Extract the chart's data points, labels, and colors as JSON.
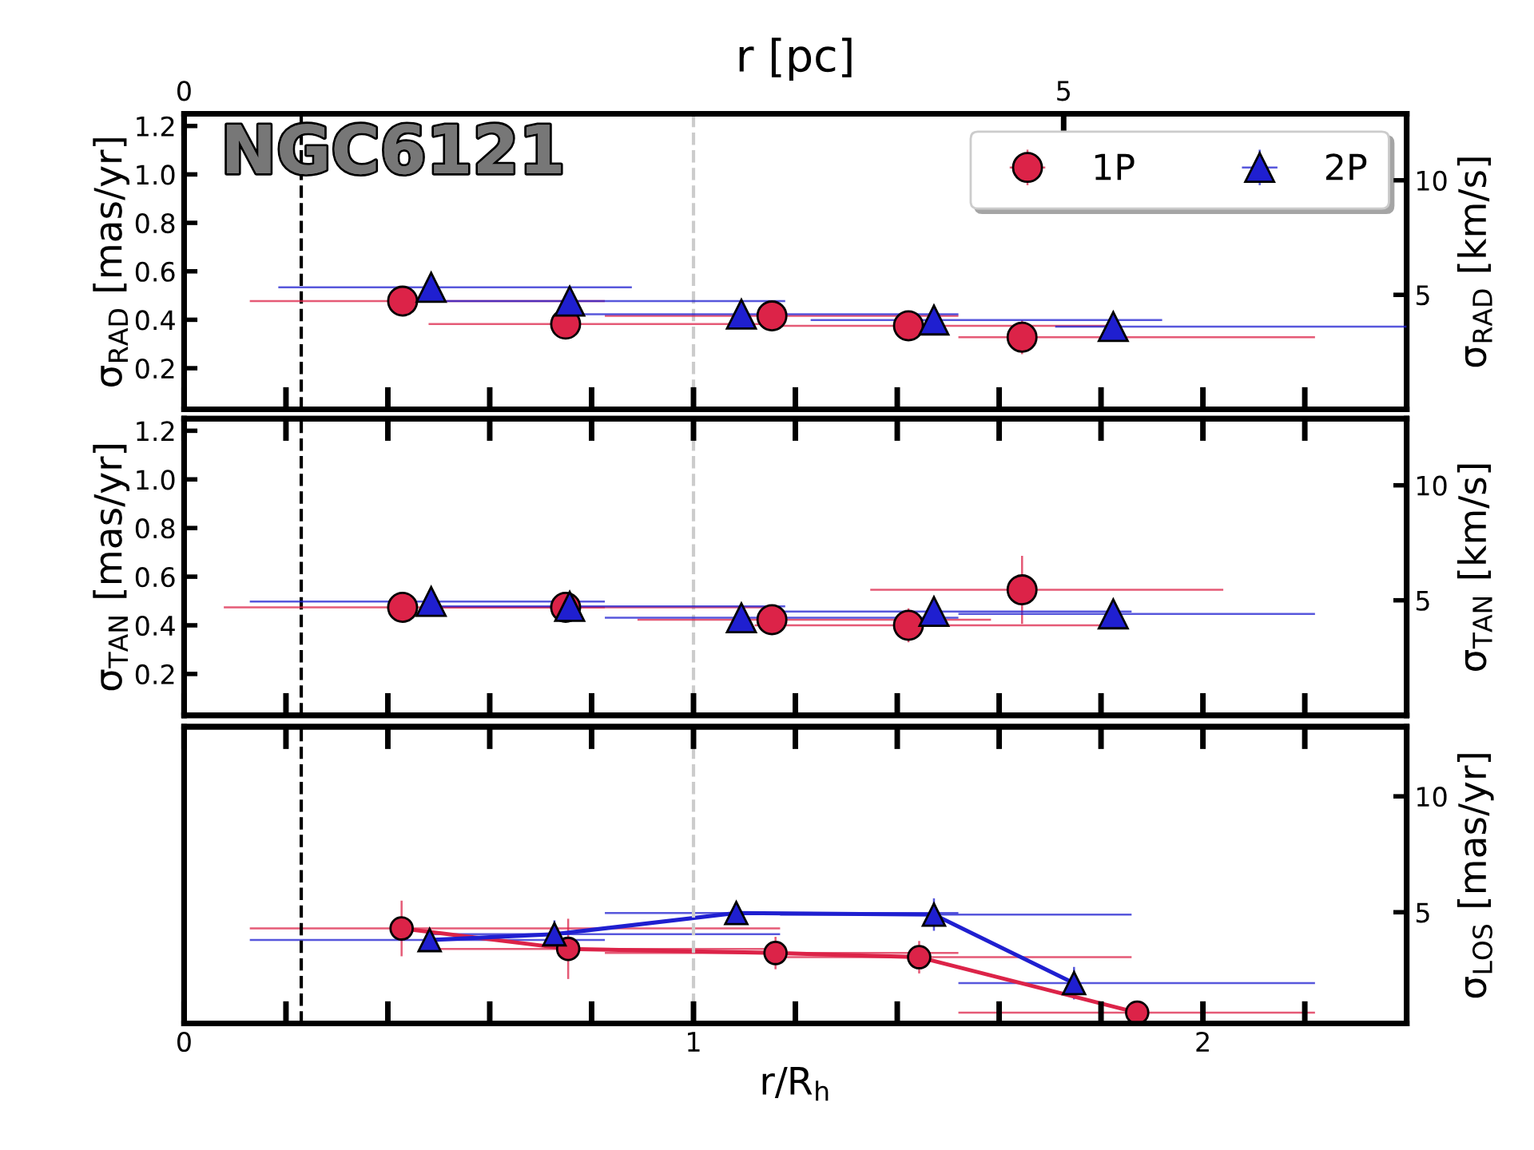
{
  "chart_data": [
    {
      "type": "scatter",
      "ylabel": "σ$_{RAD}$ [mas/yr]",
      "y2label": "σ$_{RAD}$ [km/s]",
      "x2label": "r [pc]",
      "annotations": [
        "NGC6121"
      ],
      "xlim": [
        0,
        2.4
      ],
      "ylim": [
        0.03,
        1.25
      ],
      "y2lim": [
        0,
        12.9
      ],
      "xticks": [
        0,
        {
          "value": 0.2,
          "label": null
        },
        {
          "value": 0.4,
          "label": null
        },
        {
          "value": 0.6,
          "label": null
        },
        {
          "value": 0.8,
          "label": null
        },
        1,
        {
          "value": 1.2,
          "label": null
        },
        {
          "value": 1.4,
          "label": null
        },
        {
          "value": 1.6,
          "label": null
        },
        {
          "value": 1.8,
          "label": null
        },
        2,
        {
          "value": 2.2,
          "label": null
        }
      ],
      "yticks": [
        0.2,
        0.4,
        0.6,
        0.8,
        {
          "value": 1,
          "label": "1.0"
        },
        1.2
      ],
      "y2ticks": [
        5,
        10
      ],
      "x2lim": [
        0,
        6.95
      ],
      "x2ticks": [
        0,
        5
      ],
      "tick_labels": "y",
      "legend": "top right",
      "ref_lines": [
        {
          "axis": "x",
          "value": 0.23,
          "color": "#000000",
          "line_style": "dashed"
        },
        {
          "axis": "x",
          "value": 1.0,
          "color": "#cccccc",
          "line_style": "dashed"
        }
      ],
      "series": [
        {
          "name": "1P",
          "color": "#dc2348",
          "marker": "circle",
          "x": [
            0.429,
            0.749,
            1.154,
            1.422,
            1.645
          ],
          "values": [
            0.477,
            0.382,
            0.416,
            0.375,
            0.328
          ],
          "errors": [
            0.04,
            0.04,
            0.04,
            0.05,
            0.07
          ],
          "xerrors": [
            [
              0.129,
              0.826
            ],
            [
              0.48,
              1.17
            ],
            [
              0.826,
              1.52
            ],
            [
              1.17,
              1.84
            ],
            [
              1.52,
              2.22
            ]
          ]
        },
        {
          "name": "2P",
          "color": "#1f1fd0",
          "marker": "triangle",
          "x": [
            0.485,
            0.757,
            1.094,
            1.472,
            1.824
          ],
          "values": [
            0.534,
            0.477,
            0.423,
            0.399,
            0.372
          ],
          "errors": [
            0.04,
            0.04,
            0.03,
            0.04,
            0.03
          ],
          "xerrors": [
            [
              0.185,
              0.879
            ],
            [
              0.48,
              1.18
            ],
            [
              0.77,
              1.52
            ],
            [
              1.23,
              1.92
            ],
            [
              1.71,
              2.4
            ]
          ]
        }
      ]
    },
    {
      "type": "scatter",
      "ylabel": "σ$_{TAN}$ [mas/yr]",
      "y2label": "σ$_{TAN}$ [km/s]",
      "xlim": [
        0,
        2.4
      ],
      "ylim": [
        0.03,
        1.25
      ],
      "y2lim": [
        0,
        12.9
      ],
      "xticks": [
        0,
        {
          "value": 0.2,
          "label": null
        },
        {
          "value": 0.4,
          "label": null
        },
        {
          "value": 0.6,
          "label": null
        },
        {
          "value": 0.8,
          "label": null
        },
        1,
        {
          "value": 1.2,
          "label": null
        },
        {
          "value": 1.4,
          "label": null
        },
        {
          "value": 1.6,
          "label": null
        },
        {
          "value": 1.8,
          "label": null
        },
        2,
        {
          "value": 2.2,
          "label": null
        }
      ],
      "yticks": [
        0.2,
        0.4,
        0.6,
        0.8,
        {
          "value": 1,
          "label": "1.0"
        },
        1.2
      ],
      "y2ticks": [
        5,
        10
      ],
      "tick_labels": "y",
      "ref_lines": [
        {
          "axis": "x",
          "value": 0.23,
          "color": "#000000",
          "line_style": "dashed"
        },
        {
          "axis": "x",
          "value": 1.0,
          "color": "#cccccc",
          "line_style": "dashed"
        }
      ],
      "series": [
        {
          "color": "#dc2348",
          "marker": "circle",
          "x": [
            0.429,
            0.749,
            1.154,
            1.422,
            1.645
          ],
          "values": [
            0.474,
            0.474,
            0.423,
            0.4,
            0.546
          ],
          "errors": [
            0.03,
            0.04,
            0.05,
            0.07,
            0.14
          ],
          "xerrors": [
            [
              0.078,
              0.826
            ],
            [
              0.48,
              1.17
            ],
            [
              0.89,
              1.584
            ],
            [
              1.12,
              1.82
            ],
            [
              1.347,
              2.04
            ]
          ]
        },
        {
          "color": "#1f1fd0",
          "marker": "triangle",
          "x": [
            0.485,
            0.757,
            1.094,
            1.472,
            1.824
          ],
          "values": [
            0.498,
            0.478,
            0.431,
            0.457,
            0.447
          ],
          "errors": [
            0.03,
            0.03,
            0.03,
            0.05,
            0.05
          ],
          "xerrors": [
            [
              0.129,
              0.826
            ],
            [
              0.47,
              1.18
            ],
            [
              0.826,
              1.52
            ],
            [
              1.17,
              1.86
            ],
            [
              1.52,
              2.22
            ]
          ]
        }
      ]
    },
    {
      "type": "line",
      "xlabel": "r/R$_{h}$",
      "y2label": "σ$_{LOS}$ [mas/yr]",
      "xlim": [
        0,
        2.4
      ],
      "y2lim": [
        0.2,
        13.0
      ],
      "xticks": [
        0,
        {
          "value": 0.2,
          "label": null
        },
        {
          "value": 0.4,
          "label": null
        },
        {
          "value": 0.6,
          "label": null
        },
        {
          "value": 0.8,
          "label": null
        },
        1,
        {
          "value": 1.2,
          "label": null
        },
        {
          "value": 1.4,
          "label": null
        },
        {
          "value": 1.6,
          "label": null
        },
        {
          "value": 1.8,
          "label": null
        },
        2,
        {
          "value": 2.2,
          "label": null
        }
      ],
      "y2ticks": [
        5,
        10
      ],
      "ref_lines": [
        {
          "axis": "x",
          "value": 0.23,
          "color": "#000000",
          "line_style": "dashed"
        },
        {
          "axis": "x",
          "value": 1.0,
          "color": "#cccccc",
          "line_style": "dashed"
        }
      ],
      "series": [
        {
          "color": "#dc2348",
          "marker": "circle",
          "axis": "y2",
          "x": [
            0.427,
            0.754,
            1.161,
            1.443,
            1.871
          ],
          "values": [
            4.3,
            3.42,
            3.24,
            3.06,
            0.67
          ],
          "errors": [
            1.2,
            1.3,
            0.7,
            0.7,
            0.4
          ],
          "xerrors": [
            [
              0.129,
              1.17
            ],
            [
              0.48,
              1.17
            ],
            [
              0.826,
              1.52
            ],
            [
              1.17,
              1.86
            ],
            [
              1.52,
              2.22
            ]
          ]
        },
        {
          "color": "#1f1fd0",
          "marker": "triangle",
          "axis": "y2",
          "x": [
            0.482,
            0.727,
            1.084,
            1.472,
            1.747
          ],
          "values": [
            3.8,
            4.05,
            4.97,
            4.9,
            1.94
          ],
          "errors": [
            0.4,
            0.6,
            0.4,
            0.7,
            0.7
          ],
          "xerrors": [
            [
              0.129,
              0.826
            ],
            [
              0.48,
              1.17
            ],
            [
              0.826,
              1.52
            ],
            [
              1.17,
              1.86
            ],
            [
              1.52,
              2.22
            ]
          ]
        }
      ]
    }
  ]
}
